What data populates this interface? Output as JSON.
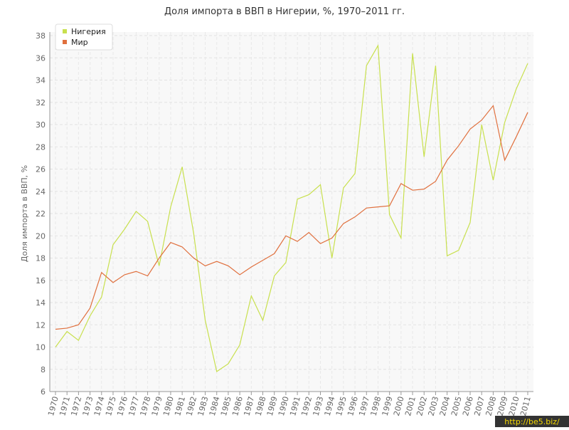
{
  "chart_data": {
    "type": "line",
    "title": "Доля импорта в ВВП в Нигерии, %, 1970–2011 гг.",
    "y_label": "Доля импорта в ВВП, %",
    "categories": [
      "1970",
      "1971",
      "1972",
      "1973",
      "1974",
      "1975",
      "1976",
      "1977",
      "1978",
      "1979",
      "1980",
      "1981",
      "1982",
      "1983",
      "1984",
      "1985",
      "1986",
      "1987",
      "1988",
      "1989",
      "1990",
      "1991",
      "1992",
      "1993",
      "1994",
      "1995",
      "1996",
      "1997",
      "1998",
      "1999",
      "2000",
      "2001",
      "2002",
      "2003",
      "2004",
      "2005",
      "2006",
      "2007",
      "2008",
      "2009",
      "2010",
      "2011"
    ],
    "series": [
      {
        "name": "Нигерия",
        "color": "#c8e04e",
        "values": [
          10.0,
          11.4,
          10.6,
          12.8,
          14.5,
          19.2,
          20.6,
          22.2,
          21.3,
          17.3,
          22.6,
          26.2,
          20.2,
          12.4,
          7.8,
          8.5,
          10.2,
          14.6,
          12.4,
          16.4,
          17.6,
          23.3,
          23.7,
          24.6,
          18.0,
          24.3,
          25.6,
          35.3,
          37.1,
          21.9,
          19.8,
          36.4,
          27.1,
          35.3,
          18.2,
          18.7,
          21.2,
          30.0,
          25.0,
          30.2,
          33.2,
          35.5
        ]
      },
      {
        "name": "Мир",
        "color": "#e0703e",
        "values": [
          11.6,
          11.7,
          12.0,
          13.5,
          16.7,
          15.8,
          16.5,
          16.8,
          16.4,
          18.0,
          19.4,
          19.0,
          18.0,
          17.3,
          17.7,
          17.3,
          16.5,
          17.2,
          17.8,
          18.4,
          20.0,
          19.5,
          20.3,
          19.3,
          19.8,
          21.1,
          21.7,
          22.5,
          22.6,
          22.7,
          24.7,
          24.1,
          24.2,
          24.9,
          26.8,
          28.1,
          29.6,
          30.4,
          31.7,
          26.8,
          28.9,
          31.1
        ]
      }
    ],
    "ylim": [
      6,
      38
    ],
    "yticks": [
      6,
      8,
      10,
      12,
      14,
      16,
      18,
      20,
      22,
      24,
      26,
      28,
      30,
      32,
      34,
      36,
      38
    ],
    "grid": true,
    "legend": "top-left",
    "watermark": "http://be5.biz/"
  }
}
